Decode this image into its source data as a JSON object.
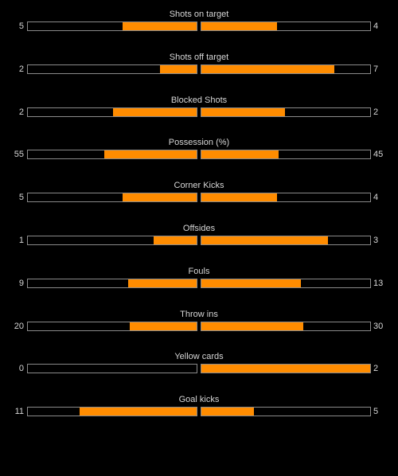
{
  "accent_color": "#ff8c00",
  "stats": [
    {
      "label": "Shots on target",
      "home": "5",
      "away": "4",
      "home_share": 0.4392,
      "away_share": 0.4464
    },
    {
      "label": "Shots off target",
      "home": "2",
      "away": "7",
      "home_share": 0.2179,
      "away_share": 0.7857
    },
    {
      "label": "Blocked Shots",
      "home": "2",
      "away": "2",
      "home_share": 0.4967,
      "away_share": 0.4967
    },
    {
      "label": "Possession (%)",
      "home": "55",
      "away": "45",
      "home_share": 0.5467,
      "away_share": 0.4567
    },
    {
      "label": "Corner Kicks",
      "home": "5",
      "away": "4",
      "home_share": 0.4392,
      "away_share": 0.4464
    },
    {
      "label": "Offsides",
      "home": "1",
      "away": "3",
      "home_share": 0.2528,
      "away_share": 0.75
    },
    {
      "label": "Fouls",
      "home": "9",
      "away": "13",
      "home_share": 0.4071,
      "away_share": 0.5906
    },
    {
      "label": "Throw ins",
      "home": "20",
      "away": "30",
      "home_share": 0.3971,
      "away_share": 0.6018
    },
    {
      "label": "Yellow cards",
      "home": "0",
      "away": "2",
      "home_share": 0,
      "away_share": 1.0
    },
    {
      "label": "Goal kicks",
      "home": "11",
      "away": "5",
      "home_share": 0.6929,
      "away_share": 0.3125
    }
  ]
}
